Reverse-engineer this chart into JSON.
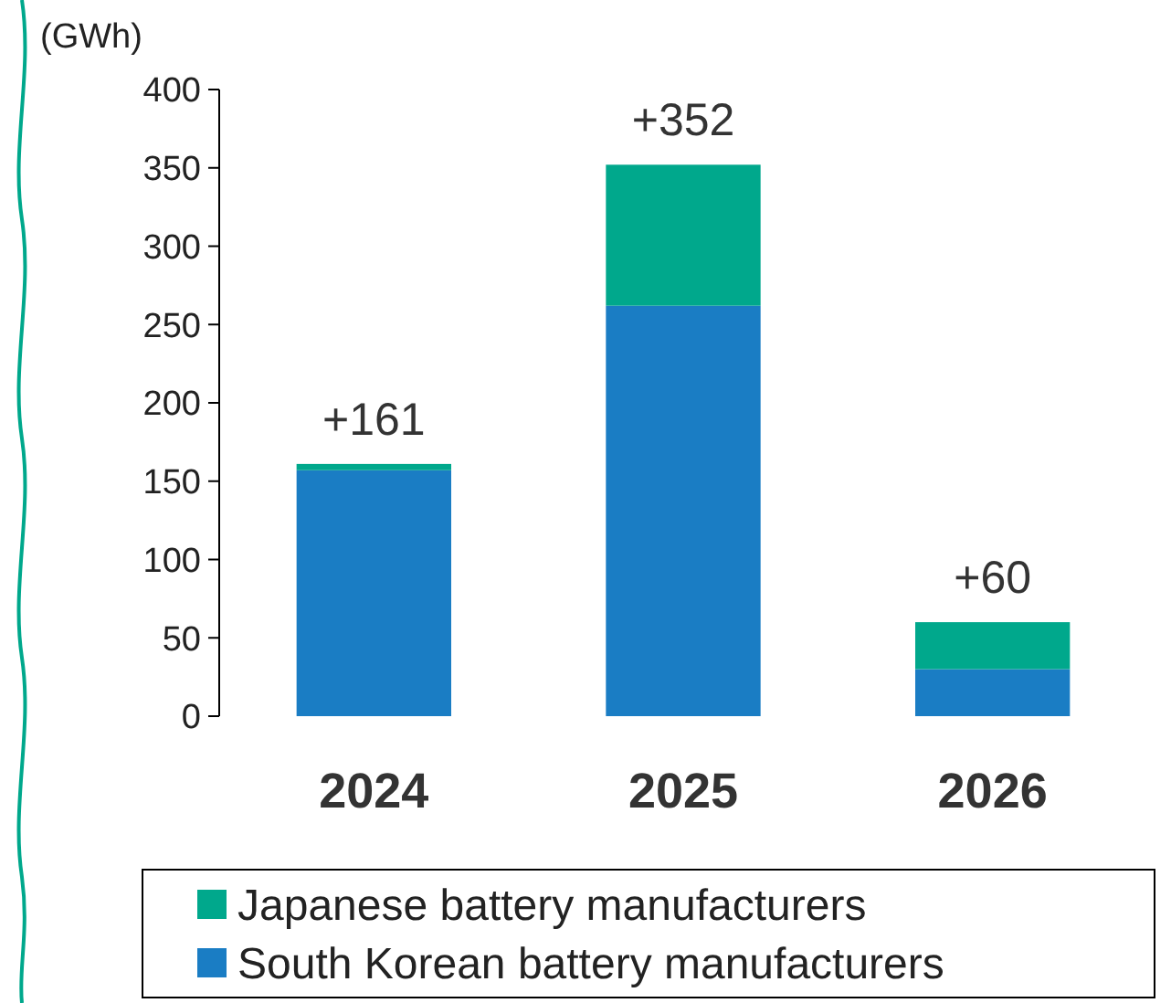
{
  "chart_data": {
    "type": "bar",
    "ylabel": "(GWh)",
    "categories": [
      "2024",
      "2025",
      "2026"
    ],
    "stacked": true,
    "series": [
      {
        "name": "South Korean battery manufacturers",
        "color": "#1a7dc4",
        "values": [
          157,
          262,
          30
        ]
      },
      {
        "name": "Japanese battery manufacturers",
        "color": "#00a88c",
        "values": [
          4,
          90,
          30
        ]
      }
    ],
    "totals": [
      "+161",
      "+352",
      "+60"
    ],
    "ylim": [
      0,
      400
    ],
    "yticks": [
      0,
      50,
      100,
      150,
      200,
      250,
      300,
      350,
      400
    ],
    "grid": false,
    "legend": "bottom"
  }
}
